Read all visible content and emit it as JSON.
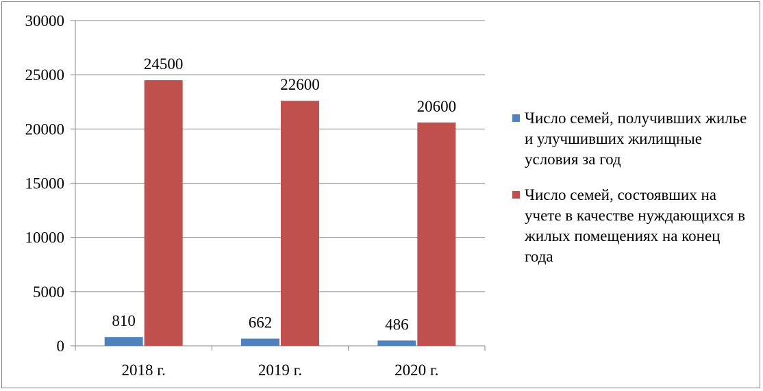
{
  "chart_data": {
    "type": "bar",
    "categories": [
      "2018 г.",
      "2019 г.",
      "2020 г."
    ],
    "series": [
      {
        "name": "Число семей, получивших жилье и улучшивших жилищные условия за год",
        "values": [
          810,
          662,
          486
        ],
        "color": "#4f81bd"
      },
      {
        "name": "Число семей, состоявших на учете в качестве нуждающихся в жилых помещениях на конец года",
        "values": [
          24500,
          22600,
          20600
        ],
        "color": "#c0504d"
      }
    ],
    "ylim": [
      0,
      30000
    ],
    "yticks": [
      0,
      5000,
      10000,
      15000,
      20000,
      25000,
      30000
    ],
    "grid": true,
    "legend_position": "right",
    "data_labels": true
  }
}
